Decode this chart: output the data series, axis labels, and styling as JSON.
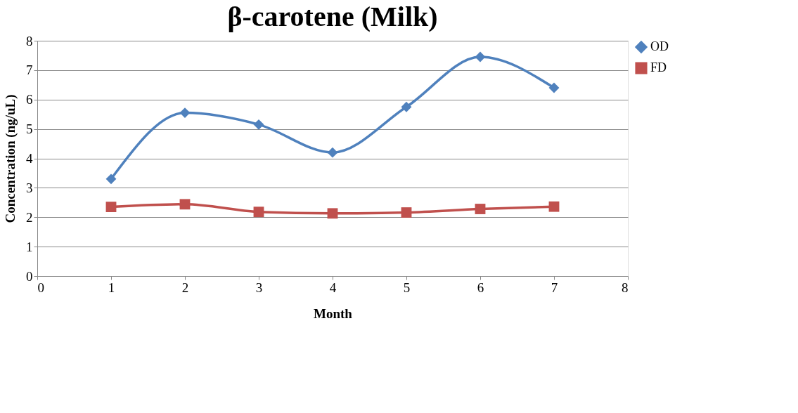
{
  "chart_data": {
    "type": "line",
    "title": "β-carotene (Milk)",
    "xlabel": "Month",
    "ylabel": "Concentration (ng/uL)",
    "x": [
      1,
      2,
      3,
      4,
      5,
      6,
      7
    ],
    "series": [
      {
        "name": "OD",
        "color": "#4f81bd",
        "marker": "diamond",
        "values": [
          3.3,
          5.55,
          5.15,
          4.2,
          5.75,
          7.45,
          6.4
        ]
      },
      {
        "name": "FD",
        "color": "#c0504d",
        "marker": "square",
        "values": [
          2.35,
          2.44,
          2.18,
          2.13,
          2.16,
          2.28,
          2.36
        ]
      }
    ],
    "xlim": [
      0,
      8
    ],
    "xticks": [
      0,
      1,
      2,
      3,
      4,
      5,
      6,
      7,
      8
    ],
    "ylim": [
      0,
      8
    ],
    "yticks": [
      0,
      1,
      2,
      3,
      4,
      5,
      6,
      7,
      8
    ],
    "grid": "y",
    "legend": "right"
  }
}
